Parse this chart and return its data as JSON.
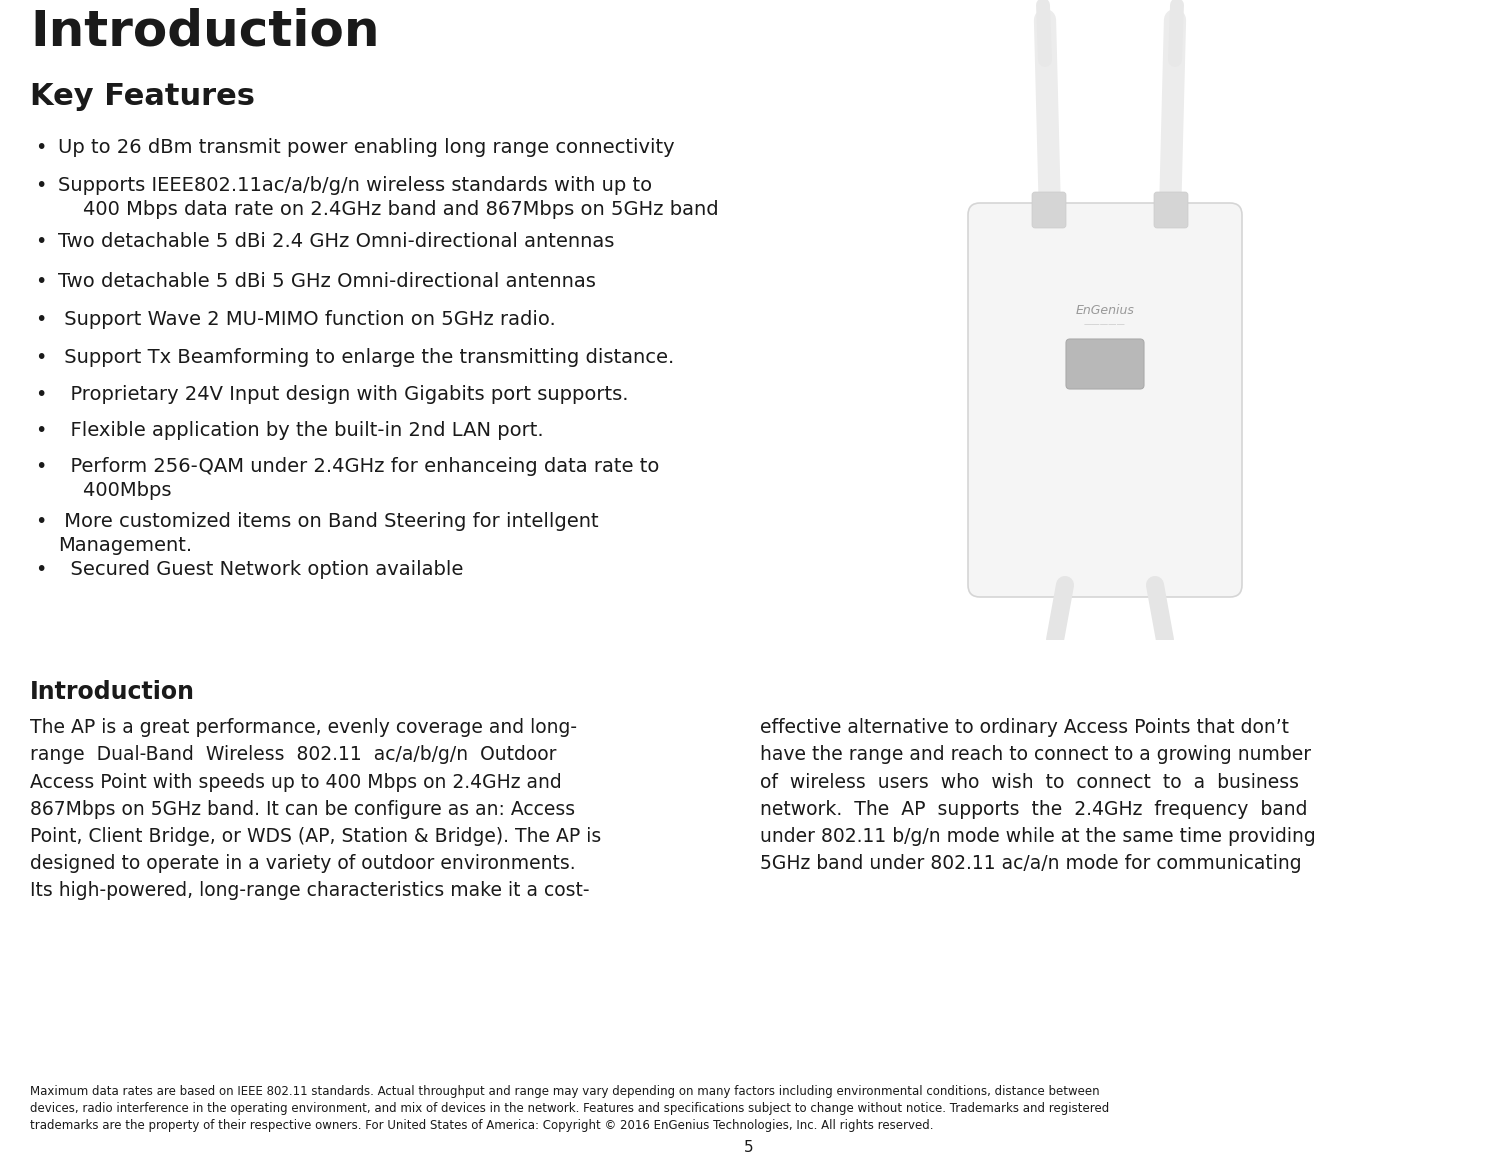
{
  "bg_color": "#ffffff",
  "title": "Introduction",
  "title_fontsize": 36,
  "key_features_title": "Key Features",
  "key_features_fontsize": 22,
  "bullet_fontsize": 14,
  "intro_section_title": "Introduction",
  "intro_title_fontsize": 17,
  "intro_text_fontsize": 13.5,
  "text_color": "#1a1a1a",
  "footer_fontsize": 8.5,
  "page_number": "5",
  "bullet_texts": [
    "Up to 26 dBm transmit power enabling long range connectivity",
    "Supports IEEE802.11ac/a/b/g/n wireless standards with up to\n    400 Mbps data rate on 2.4GHz band and 867Mbps on 5GHz band",
    "Two detachable 5 dBi 2.4 GHz Omni-directional antennas",
    "Two detachable 5 dBi 5 GHz Omni-directional antennas",
    " Support Wave 2 MU-MIMO function on 5GHz radio.",
    " Support Tx Beamforming to enlarge the transmitting distance.",
    "  Proprietary 24V Input design with Gigabits port supports.",
    "  Flexible application by the built-in 2nd LAN port.",
    "  Perform 256-QAM under 2.4GHz for enhanceing data rate to\n    400Mbps",
    " More customized items on Band Steering for intellgent\nManagement.",
    "  Secured Guest Network option available"
  ],
  "footer_text": "Maximum data rates are based on IEEE 802.11 standards. Actual throughput and range may vary depending on many factors including environmental conditions, distance between\ndevices, radio interference in the operating environment, and mix of devices in the network. Features and specifications subject to change without notice. Trademarks and registered\ntrademarks are the property of their respective owners. For United States of America: Copyright © 2016 EnGenius Technologies, Inc. All rights reserved."
}
